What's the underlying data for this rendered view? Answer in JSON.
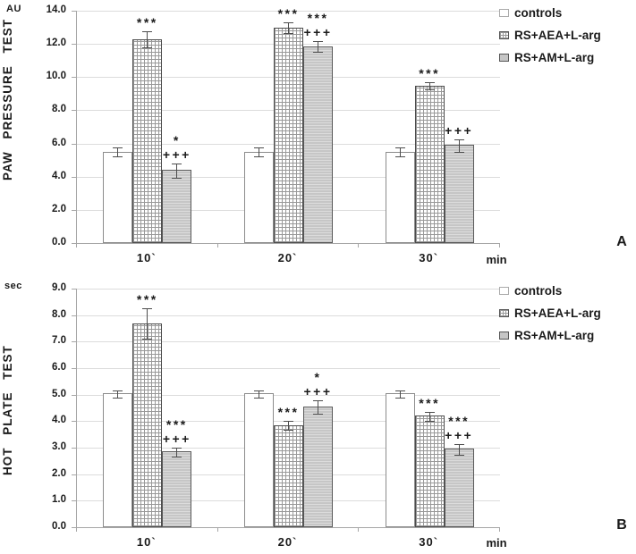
{
  "colors": {
    "grid_line": "#dcdcdc",
    "axis_line": "#a6a6a6",
    "bar_border": "#595959",
    "gray_fill": "#c6c6c6",
    "crosshatch_line": "#999999",
    "text": "#1a1a1a"
  },
  "chart_data": [
    {
      "id": "A",
      "type": "bar",
      "panel_label": "A",
      "unit_label": "AU",
      "axis_title": "PAW PRESSURE TEST",
      "x_axis_label": "min",
      "categories": [
        "10`",
        "20`",
        "30`"
      ],
      "ylim": [
        0,
        14
      ],
      "yticks": [
        14,
        12,
        10,
        8,
        6,
        4,
        2,
        0
      ],
      "ytick_labels": [
        "14.0",
        "12.0",
        "10.0",
        "8.0",
        "6.0",
        "4.0",
        "2.0",
        "0.0"
      ],
      "grid": true,
      "legend_position": "top-right",
      "series": [
        {
          "name": "controls",
          "style": "white",
          "values": [
            5.5,
            5.5,
            5.5
          ],
          "errors": [
            0.25,
            0.25,
            0.25
          ],
          "annotations": [
            [],
            [],
            []
          ]
        },
        {
          "name": "RS+AEA+L-arg",
          "style": "crosshatch",
          "values": [
            12.3,
            13.0,
            9.5
          ],
          "errors": [
            0.45,
            0.3,
            0.2
          ],
          "annotations": [
            [
              "***"
            ],
            [
              "***"
            ],
            [
              "***"
            ]
          ]
        },
        {
          "name": "RS+AM+L-arg",
          "style": "gray",
          "values": [
            4.4,
            11.85,
            5.9
          ],
          "errors": [
            0.4,
            0.3,
            0.35
          ],
          "annotations": [
            [
              "*",
              "+++"
            ],
            [
              "***",
              "+++"
            ],
            [
              "+++"
            ]
          ]
        }
      ]
    },
    {
      "id": "B",
      "type": "bar",
      "panel_label": "B",
      "unit_label": "sec",
      "axis_title": "HOT PLATE TEST",
      "x_axis_label": "min",
      "categories": [
        "10`",
        "20`",
        "30`"
      ],
      "ylim": [
        0,
        9
      ],
      "yticks": [
        9,
        8,
        7,
        6,
        5,
        4,
        3,
        2,
        1,
        0
      ],
      "ytick_labels": [
        "9.0",
        "8.0",
        "7.0",
        "6.0",
        "5.0",
        "4.0",
        "3.0",
        "2.0",
        "1.0",
        "0.0"
      ],
      "grid": true,
      "legend_position": "top-right",
      "series": [
        {
          "name": "controls",
          "style": "white",
          "values": [
            5.05,
            5.05,
            5.05
          ],
          "errors": [
            0.12,
            0.12,
            0.12
          ],
          "annotations": [
            [],
            [],
            []
          ]
        },
        {
          "name": "RS+AEA+L-arg",
          "style": "crosshatch",
          "values": [
            7.7,
            3.85,
            4.2
          ],
          "errors": [
            0.55,
            0.15,
            0.15
          ],
          "annotations": [
            [
              "***"
            ],
            [
              "***"
            ],
            [
              "***"
            ]
          ]
        },
        {
          "name": "RS+AM+L-arg",
          "style": "gray",
          "values": [
            2.85,
            4.55,
            2.95
          ],
          "errors": [
            0.15,
            0.25,
            0.2
          ],
          "annotations": [
            [
              "***",
              "+++"
            ],
            [
              "*",
              "+++"
            ],
            [
              "***",
              "+++"
            ]
          ]
        }
      ]
    }
  ]
}
